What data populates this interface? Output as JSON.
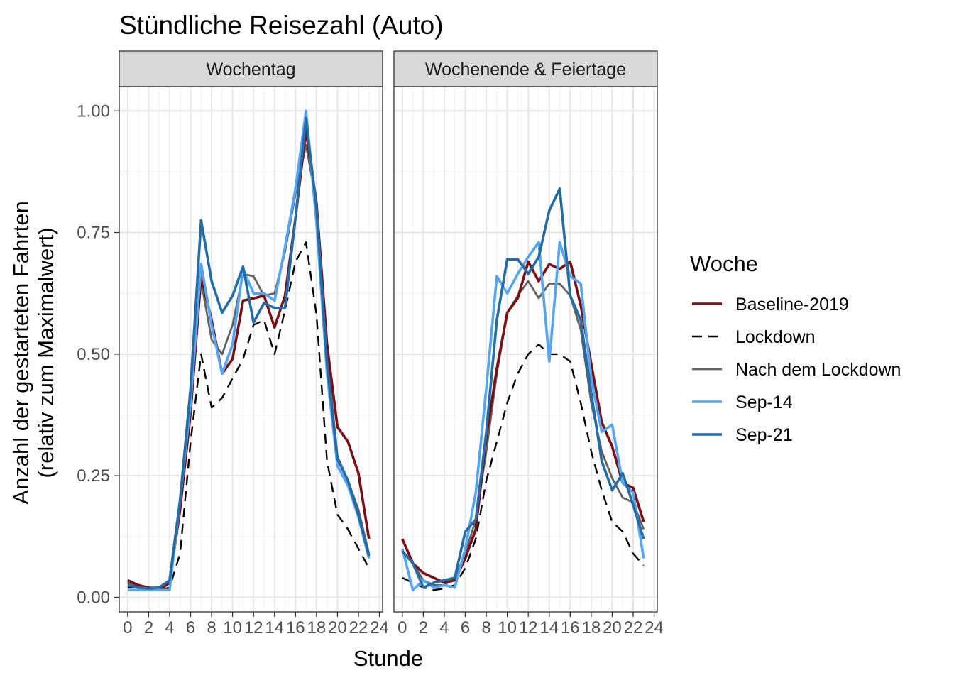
{
  "chart_data": {
    "type": "line",
    "title": "Stündliche Reisezahl (Auto)",
    "xlabel": "Stunde",
    "ylabel": [
      "Anzahl der gestarteten Fahrten",
      "(relativ zum Maximalwert)"
    ],
    "xlim": [
      -0.8,
      24.3
    ],
    "ylim": [
      -0.03,
      1.05
    ],
    "x_ticks": [
      0,
      2,
      4,
      6,
      8,
      10,
      12,
      14,
      16,
      18,
      20,
      22,
      24
    ],
    "y_ticks": [
      0,
      0.25,
      0.5,
      0.75,
      1.0
    ],
    "y_tick_labels": [
      "0.00",
      "0.25",
      "0.50",
      "0.75",
      "1.00"
    ],
    "grid": true,
    "legend": {
      "title": "Woche",
      "position": "right",
      "items": [
        "Baseline-2019",
        "Lockdown",
        "Nach dem Lockdown",
        "Sep-14",
        "Sep-21"
      ]
    },
    "series_styles": {
      "Baseline-2019": {
        "color": "#7a0f16",
        "width": 3.6,
        "dash": ""
      },
      "Lockdown": {
        "color": "#000000",
        "width": 2.4,
        "dash": "14 9"
      },
      "Nach dem Lockdown": {
        "color": "#616161",
        "width": 2.8,
        "dash": ""
      },
      "Sep-14": {
        "color": "#55a5f2",
        "width": 3.6,
        "dash": ""
      },
      "Sep-21": {
        "color": "#236ca6",
        "width": 3.6,
        "dash": ""
      }
    },
    "x": [
      0,
      1,
      2,
      3,
      4,
      5,
      6,
      7,
      8,
      9,
      10,
      11,
      12,
      13,
      14,
      15,
      16,
      17,
      18,
      19,
      20,
      21,
      22,
      23
    ],
    "panels": [
      {
        "strip": "Wochentag",
        "series": [
          {
            "name": "Lockdown",
            "values": [
              0.02,
              0.02,
              0.018,
              0.015,
              0.02,
              0.09,
              0.32,
              0.5,
              0.39,
              0.41,
              0.45,
              0.49,
              0.56,
              0.57,
              0.5,
              0.59,
              0.69,
              0.73,
              0.58,
              0.28,
              0.17,
              0.14,
              0.1,
              0.06
            ]
          },
          {
            "name": "Nach dem Lockdown",
            "values": [
              0.03,
              0.02,
              0.02,
              0.02,
              0.03,
              0.18,
              0.4,
              0.65,
              0.53,
              0.5,
              0.56,
              0.665,
              0.66,
              0.62,
              0.625,
              0.71,
              0.83,
              0.93,
              0.81,
              0.5,
              0.29,
              0.24,
              0.18,
              0.09
            ]
          },
          {
            "name": "Baseline-2019",
            "values": [
              0.035,
              0.025,
              0.02,
              0.015,
              0.03,
              0.18,
              0.38,
              0.66,
              0.57,
              0.46,
              0.49,
              0.61,
              0.615,
              0.62,
              0.555,
              0.62,
              0.78,
              0.96,
              0.81,
              0.52,
              0.35,
              0.32,
              0.255,
              0.12
            ]
          },
          {
            "name": "Sep-14",
            "values": [
              0.015,
              0.015,
              0.015,
              0.015,
              0.015,
              0.2,
              0.4,
              0.685,
              0.56,
              0.46,
              0.52,
              0.675,
              0.625,
              0.625,
              0.61,
              0.72,
              0.84,
              1.0,
              0.77,
              0.46,
              0.27,
              0.23,
              0.165,
              0.08
            ]
          },
          {
            "name": "Sep-21",
            "values": [
              0.025,
              0.02,
              0.018,
              0.02,
              0.035,
              0.2,
              0.43,
              0.775,
              0.65,
              0.585,
              0.62,
              0.68,
              0.565,
              0.605,
              0.595,
              0.595,
              0.78,
              0.985,
              0.8,
              0.48,
              0.285,
              0.24,
              0.17,
              0.085
            ]
          }
        ]
      },
      {
        "strip": "Wochenende & Feiertage",
        "series": [
          {
            "name": "Lockdown",
            "values": [
              0.04,
              0.03,
              0.02,
              0.015,
              0.018,
              0.025,
              0.06,
              0.12,
              0.24,
              0.32,
              0.4,
              0.46,
              0.5,
              0.52,
              0.5,
              0.5,
              0.485,
              0.4,
              0.3,
              0.22,
              0.155,
              0.135,
              0.09,
              0.065
            ]
          },
          {
            "name": "Nach dem Lockdown",
            "values": [
              0.095,
              0.07,
              0.035,
              0.025,
              0.025,
              0.04,
              0.09,
              0.16,
              0.3,
              0.46,
              0.585,
              0.62,
              0.65,
              0.615,
              0.645,
              0.645,
              0.62,
              0.55,
              0.4,
              0.3,
              0.245,
              0.205,
              0.195,
              0.14
            ]
          },
          {
            "name": "Baseline-2019",
            "values": [
              0.12,
              0.07,
              0.05,
              0.04,
              0.03,
              0.035,
              0.08,
              0.14,
              0.33,
              0.47,
              0.585,
              0.615,
              0.69,
              0.65,
              0.685,
              0.675,
              0.69,
              0.6,
              0.48,
              0.36,
              0.31,
              0.235,
              0.225,
              0.155
            ]
          },
          {
            "name": "Sep-14",
            "values": [
              0.1,
              0.015,
              0.035,
              0.02,
              0.025,
              0.02,
              0.1,
              0.215,
              0.43,
              0.66,
              0.625,
              0.665,
              0.7,
              0.73,
              0.485,
              0.73,
              0.66,
              0.645,
              0.45,
              0.34,
              0.355,
              0.235,
              0.215,
              0.08
            ]
          },
          {
            "name": "Sep-21",
            "values": [
              0.095,
              0.07,
              0.02,
              0.03,
              0.035,
              0.04,
              0.135,
              0.16,
              0.34,
              0.57,
              0.695,
              0.695,
              0.665,
              0.7,
              0.795,
              0.84,
              0.62,
              0.57,
              0.42,
              0.28,
              0.22,
              0.255,
              0.19,
              0.12
            ]
          }
        ]
      }
    ]
  }
}
